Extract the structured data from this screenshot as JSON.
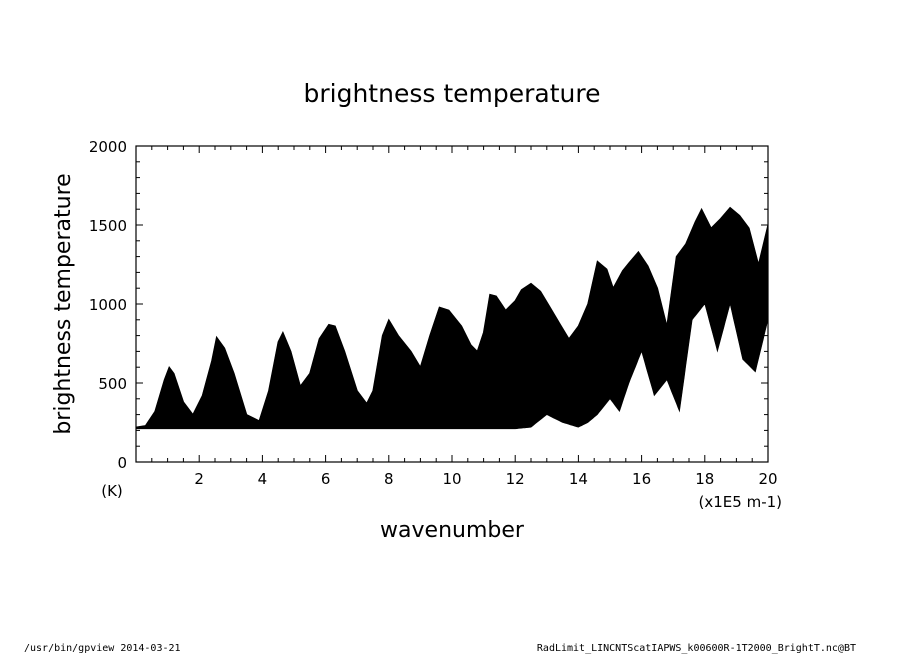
{
  "chart_data": {
    "type": "area",
    "title": "brightness temperature",
    "xlabel": "wavenumber",
    "ylabel": "brightness temperature",
    "x_unit": "(x1E5 m-1)",
    "y_unit": "(K)",
    "xlim": [
      0,
      20
    ],
    "ylim": [
      0,
      2000
    ],
    "x_ticks": [
      2,
      4,
      6,
      8,
      10,
      12,
      14,
      16,
      18,
      20
    ],
    "x_tick_labels": [
      "2",
      "4",
      "6",
      "8",
      "10",
      "12",
      "14",
      "16",
      "18",
      "20"
    ],
    "y_ticks": [
      0,
      500,
      1000,
      1500,
      2000
    ],
    "y_tick_labels": [
      "0",
      "500",
      "1000",
      "1500",
      "2000"
    ],
    "grid": false,
    "series": [
      {
        "values_description": "upper envelope",
        "x": [
          0,
          0.3,
          0.6,
          0.9,
          1.05,
          1.2,
          1.5,
          1.8,
          2.1,
          2.4,
          2.55,
          2.8,
          3.1,
          3.5,
          3.9,
          4.2,
          4.5,
          4.65,
          4.9,
          5.2,
          5.5,
          5.8,
          6.1,
          6.3,
          6.6,
          7.0,
          7.3,
          7.5,
          7.8,
          8.0,
          8.3,
          8.7,
          9.0,
          9.3,
          9.6,
          9.9,
          10.3,
          10.6,
          10.8,
          11.0,
          11.2,
          11.4,
          11.7,
          12.0,
          12.2,
          12.5,
          12.8,
          13.1,
          13.4,
          13.7,
          14.0,
          14.3,
          14.6,
          14.9,
          15.1,
          15.4,
          15.6,
          15.9,
          16.2,
          16.5,
          16.8,
          17.1,
          17.4,
          17.7,
          17.9,
          18.2,
          18.5,
          18.8,
          19.1,
          19.4,
          19.7,
          20.0
        ],
        "upper": [
          220,
          230,
          320,
          520,
          600,
          560,
          380,
          300,
          420,
          640,
          790,
          720,
          560,
          300,
          260,
          450,
          760,
          820,
          700,
          480,
          560,
          780,
          870,
          860,
          700,
          450,
          370,
          450,
          800,
          900,
          800,
          700,
          600,
          800,
          980,
          960,
          860,
          740,
          700,
          820,
          1060,
          1050,
          960,
          1020,
          1090,
          1130,
          1080,
          980,
          880,
          780,
          860,
          1000,
          1270,
          1220,
          1100,
          1210,
          1260,
          1330,
          1240,
          1100,
          860,
          1300,
          1380,
          1520,
          1600,
          1480,
          1540,
          1610,
          1560,
          1480,
          1250,
          1500
        ]
      },
      {
        "values_description": "lower envelope",
        "x": [
          0,
          0.5,
          1.0,
          1.5,
          2.0,
          2.5,
          3.0,
          3.5,
          4.0,
          4.5,
          5.0,
          5.5,
          6.0,
          6.5,
          7.0,
          7.5,
          8.0,
          8.5,
          9.0,
          9.5,
          10.0,
          10.5,
          11.0,
          11.5,
          12.0,
          12.5,
          13.0,
          13.5,
          14.0,
          14.3,
          14.6,
          15.0,
          15.3,
          15.6,
          16.0,
          16.4,
          16.8,
          17.2,
          17.6,
          18.0,
          18.4,
          18.8,
          19.2,
          19.6,
          20.0
        ],
        "lower": [
          210,
          210,
          210,
          210,
          210,
          210,
          210,
          210,
          210,
          210,
          210,
          210,
          210,
          210,
          210,
          210,
          210,
          210,
          210,
          210,
          210,
          210,
          210,
          210,
          210,
          220,
          300,
          250,
          220,
          250,
          300,
          400,
          320,
          500,
          700,
          420,
          520,
          320,
          900,
          1000,
          700,
          1000,
          650,
          570,
          900
        ]
      }
    ]
  },
  "footer": {
    "left": "/usr/bin/gpview  2014-03-21",
    "right": "RadLimit_LINCNTScatIAPWS_k00600R-1T2000_BrightT.nc@BT"
  }
}
